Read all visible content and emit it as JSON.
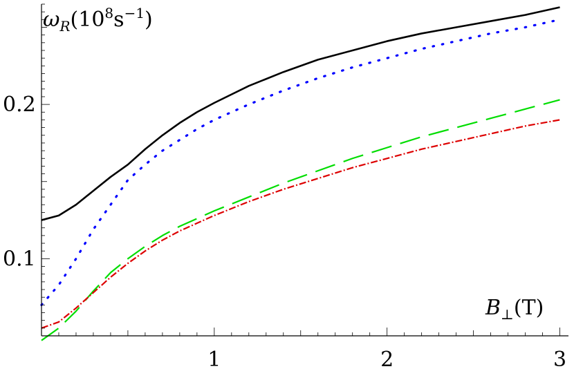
{
  "chart_data": {
    "type": "line",
    "title": "",
    "xlabel": "B⊥(T)",
    "ylabel": "ωR(10⁸s⁻¹)",
    "xlim": [
      0,
      3.05
    ],
    "ylim": [
      0.05,
      0.265
    ],
    "x_ticks": [
      1,
      2,
      3
    ],
    "x_tick_labels": [
      "1",
      "2",
      "3"
    ],
    "y_ticks": [
      0.1,
      0.2
    ],
    "y_tick_labels": [
      "0.1",
      "0.2"
    ],
    "grid": false,
    "legend": "none",
    "series": [
      {
        "color": "#000000",
        "style": "solid",
        "x": [
          0,
          0.1,
          0.2,
          0.3,
          0.4,
          0.5,
          0.6,
          0.7,
          0.8,
          0.9,
          1.0,
          1.2,
          1.4,
          1.6,
          1.8,
          2.0,
          2.2,
          2.4,
          2.6,
          2.8,
          3.0
        ],
        "y": [
          0.125,
          0.128,
          0.135,
          0.144,
          0.153,
          0.161,
          0.171,
          0.18,
          0.188,
          0.195,
          0.201,
          0.212,
          0.221,
          0.229,
          0.235,
          0.241,
          0.246,
          0.25,
          0.254,
          0.258,
          0.263
        ]
      },
      {
        "color": "#0000ff",
        "style": "dotted",
        "x": [
          0,
          0.1,
          0.2,
          0.3,
          0.4,
          0.5,
          0.6,
          0.7,
          0.8,
          0.9,
          1.0,
          1.2,
          1.4,
          1.6,
          1.8,
          2.0,
          2.2,
          2.4,
          2.6,
          2.8,
          3.0
        ],
        "y": [
          0.07,
          0.083,
          0.1,
          0.119,
          0.135,
          0.151,
          0.161,
          0.17,
          0.177,
          0.184,
          0.19,
          0.2,
          0.209,
          0.217,
          0.224,
          0.23,
          0.236,
          0.241,
          0.246,
          0.25,
          0.255
        ]
      },
      {
        "color": "#00dd00",
        "style": "dashed",
        "x": [
          0,
          0.1,
          0.2,
          0.3,
          0.4,
          0.5,
          0.6,
          0.7,
          0.8,
          0.9,
          1.0,
          1.2,
          1.4,
          1.6,
          1.8,
          2.0,
          2.2,
          2.4,
          2.6,
          2.8,
          3.0
        ],
        "y": [
          0.047,
          0.055,
          0.066,
          0.079,
          0.091,
          0.1,
          0.108,
          0.115,
          0.121,
          0.126,
          0.131,
          0.14,
          0.149,
          0.157,
          0.165,
          0.172,
          0.179,
          0.185,
          0.191,
          0.197,
          0.203
        ]
      },
      {
        "color": "#dd0000",
        "style": "dash-dot",
        "x": [
          0,
          0.1,
          0.2,
          0.3,
          0.4,
          0.5,
          0.6,
          0.7,
          0.8,
          0.9,
          1.0,
          1.2,
          1.4,
          1.6,
          1.8,
          2.0,
          2.2,
          2.4,
          2.6,
          2.8,
          3.0
        ],
        "y": [
          0.055,
          0.059,
          0.068,
          0.078,
          0.088,
          0.097,
          0.105,
          0.112,
          0.118,
          0.123,
          0.128,
          0.137,
          0.145,
          0.152,
          0.159,
          0.165,
          0.171,
          0.176,
          0.181,
          0.186,
          0.19
        ]
      }
    ]
  }
}
